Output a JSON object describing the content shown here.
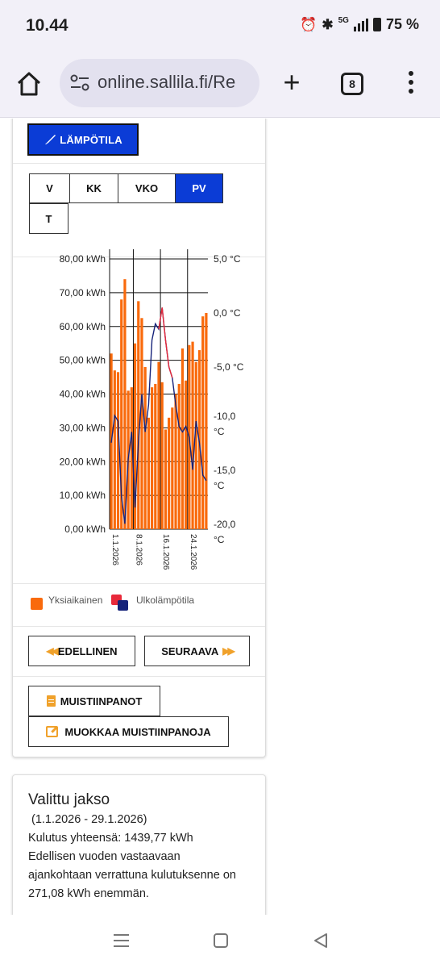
{
  "status_bar": {
    "time": "10.44",
    "network": "5G",
    "battery": "75 %",
    "icons": [
      "alarm-icon",
      "bluetooth-icon",
      "signal-icon",
      "battery-icon"
    ]
  },
  "browser": {
    "url": "online.sallila.fi/Re",
    "tab_count": "8"
  },
  "controls": {
    "temperature_button": "LÄMPÖTILA",
    "periods": [
      {
        "label": "V",
        "active": false
      },
      {
        "label": "KK",
        "active": false
      },
      {
        "label": "VKO",
        "active": false
      },
      {
        "label": "PV",
        "active": true
      },
      {
        "label": "T",
        "active": false
      }
    ],
    "prev_label": "EDELLINEN",
    "next_label": "SEURAAVA",
    "notes_label": "MUISTIINPANOT",
    "edit_notes_label": "MUOKKAA MUISTIINPANOJA"
  },
  "colors": {
    "accent_blue": "#0b3cd6",
    "bar_orange": "#f96a0c",
    "temp_line_red": "#e8293a",
    "temp_line_blue": "#16237a",
    "icon_orange": "#f0a12a"
  },
  "chart_data": {
    "type": "bar",
    "y_ticks": [
      "80,00 kWh",
      "70,00 kWh",
      "60,00 kWh",
      "50,00 kWh",
      "40,00 kWh",
      "30,00 kWh",
      "20,00 kWh",
      "10,00 kWh",
      "0,00 kWh"
    ],
    "y2_ticks": [
      {
        "v": 5,
        "label": "5,0 °C"
      },
      {
        "v": 0,
        "label": "0,0 °C"
      },
      {
        "v": -5,
        "label": "-5,0 °C"
      },
      {
        "v": -10,
        "label": "-10,0 °C"
      },
      {
        "v": -15,
        "label": "-15,0 °C"
      },
      {
        "v": -20,
        "label": "-20,0 °C"
      }
    ],
    "x_ticks": [
      {
        "day": 1,
        "label": "1.1.2026"
      },
      {
        "day": 8,
        "label": "8.1.2026"
      },
      {
        "day": 16,
        "label": "16.1.2026"
      },
      {
        "day": 24,
        "label": "24.1.2026"
      }
    ],
    "ylim": [
      0,
      80
    ],
    "y2lim": [
      -20,
      5
    ],
    "days": 29,
    "series": [
      {
        "name": "Yksiaikainen",
        "color": "#f96a0c",
        "values": [
          52,
          47,
          46.5,
          68,
          74,
          41,
          42,
          55,
          67.5,
          62.5,
          48,
          33,
          42,
          43,
          49.5,
          43.5,
          29.5,
          33,
          36,
          40,
          43,
          53.5,
          44,
          54.5,
          55.5,
          49.5,
          53,
          63,
          64
        ]
      },
      {
        "name": "Ulkolämpötila",
        "color": "#16237a",
        "values": [
          -12,
          -9.5,
          -10,
          -17,
          -19.5,
          -13.5,
          -11,
          -18,
          -12,
          -7.5,
          -11,
          -8.5,
          -2.5,
          -1,
          -1.5,
          0.5,
          -2.5,
          -5,
          -6,
          -8.5,
          -10.5,
          -11,
          -10.5,
          -11.5,
          -14.5,
          -10,
          -12,
          -15,
          -15.5
        ]
      }
    ]
  },
  "info": {
    "title": "Valittu jakso",
    "range": "(1.1.2026 - 29.1.2026)",
    "total": "Kulutus yhteensä: 1439,77 kWh",
    "compare_1": "Edellisen vuoden vastaavaan",
    "compare_2": "ajankohtaan verrattuna kulutuksenne on",
    "compare_3": "271,08 kWh enemmän."
  }
}
